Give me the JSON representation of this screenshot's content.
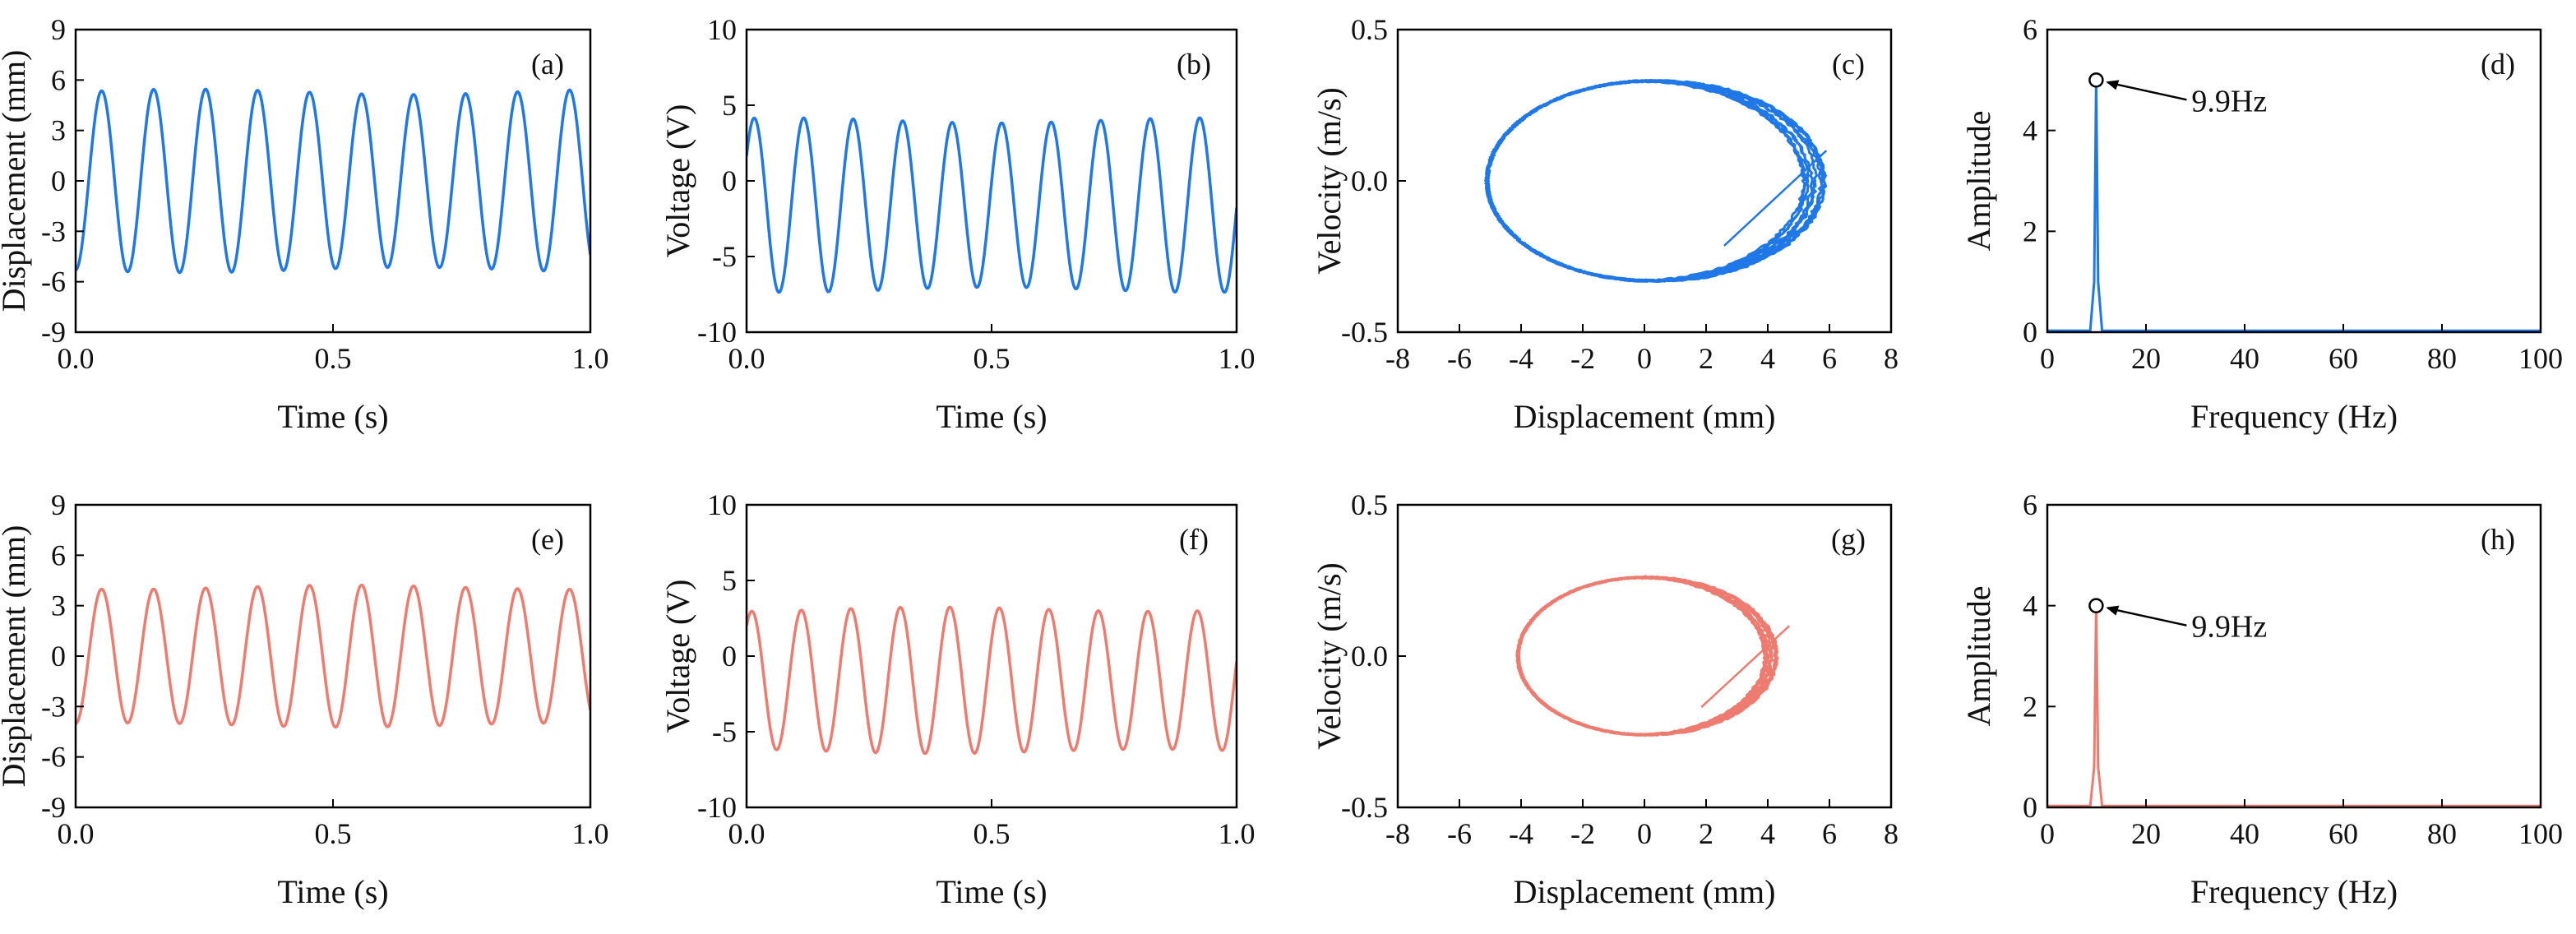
{
  "colors": {
    "blue": "#1f77e8",
    "red": "#ee7b6f",
    "axis": "#000000"
  },
  "chart_data": [
    {
      "id": "a",
      "type": "line",
      "tag": "(a)",
      "color": "blue",
      "xlabel": "Time (s)",
      "ylabel": "Displacement (mm)",
      "xlim": [
        0,
        1.0
      ],
      "ylim": [
        -9,
        9
      ],
      "xticks": [
        0.0,
        0.5,
        1.0
      ],
      "xtick_labels": [
        "0.0",
        "0.5",
        "1.0"
      ],
      "yticks": [
        -9,
        -6,
        -3,
        0,
        3,
        6,
        9
      ],
      "ytick_labels": [
        "-9",
        "-6",
        "-3",
        "0",
        "3",
        "6",
        "9"
      ],
      "series": [
        {
          "name": "displacement",
          "freq": 9.9,
          "amplitude": 5.3,
          "offset": 0,
          "phase": -1.57,
          "t0": 0,
          "t1": 1.0
        }
      ]
    },
    {
      "id": "b",
      "type": "line",
      "tag": "(b)",
      "color": "blue",
      "xlabel": "Time (s)",
      "ylabel": "Voltage (V)",
      "xlim": [
        0,
        1.0
      ],
      "ylim": [
        -10,
        10
      ],
      "xticks": [
        0.0,
        0.5,
        1.0
      ],
      "xtick_labels": [
        "0.0",
        "0.5",
        "1.0"
      ],
      "yticks": [
        -10,
        -5,
        0,
        5,
        10
      ],
      "ytick_labels": [
        "-10",
        "-5",
        "0",
        "5",
        "10"
      ],
      "series": [
        {
          "name": "voltage",
          "freq": 9.9,
          "amplitude": 5.6,
          "offset": -1.6,
          "phase": 0.6,
          "t0": 0,
          "t1": 1.0
        }
      ]
    },
    {
      "id": "c",
      "type": "scatter",
      "tag": "(c)",
      "color": "blue",
      "xlabel": "Displacement (mm)",
      "ylabel": "Velocity (m/s)",
      "xlim": [
        -8,
        8
      ],
      "ylim": [
        -0.5,
        0.5
      ],
      "xticks": [
        -8,
        -6,
        -4,
        -2,
        0,
        2,
        4,
        6,
        8
      ],
      "xtick_labels": [
        "-8",
        "-6",
        "-4",
        "-2",
        "0",
        "2",
        "4",
        "6",
        "8"
      ],
      "yticks": [
        -0.5,
        0.0,
        0.5
      ],
      "ytick_labels": [
        "-0.5",
        "0.0",
        "0.5"
      ],
      "series": [
        {
          "name": "phase-trajectory",
          "x_amplitude": 5.3,
          "x_center": 0.2,
          "v_amplitude": 0.33,
          "loops": 10,
          "spread": 0.35
        }
      ]
    },
    {
      "id": "d",
      "type": "line",
      "tag": "(d)",
      "color": "blue",
      "xlabel": "Frequency (Hz)",
      "ylabel": "Amplitude",
      "xlim": [
        0,
        100
      ],
      "ylim": [
        0,
        6
      ],
      "xticks": [
        0,
        20,
        40,
        60,
        80,
        100
      ],
      "xtick_labels": [
        "0",
        "20",
        "40",
        "60",
        "80",
        "100"
      ],
      "yticks": [
        0,
        2,
        4,
        6
      ],
      "ytick_labels": [
        "0",
        "2",
        "4",
        "6"
      ],
      "series": [
        {
          "name": "spectrum",
          "peak_freq": 9.9,
          "peak_amp": 5.0
        }
      ],
      "annotation": "9.9Hz"
    },
    {
      "id": "e",
      "type": "line",
      "tag": "(e)",
      "color": "red",
      "xlabel": "Time (s)",
      "ylabel": "Displacement (mm)",
      "xlim": [
        0,
        1.0
      ],
      "ylim": [
        -9,
        9
      ],
      "xticks": [
        0.0,
        0.5,
        1.0
      ],
      "xtick_labels": [
        "0.0",
        "0.5",
        "1.0"
      ],
      "yticks": [
        -9,
        -6,
        -3,
        0,
        3,
        6,
        9
      ],
      "ytick_labels": [
        "-9",
        "-6",
        "-3",
        "0",
        "3",
        "6",
        "9"
      ],
      "series": [
        {
          "name": "displacement",
          "freq": 9.9,
          "amplitude": 4.1,
          "offset": 0,
          "phase": -1.57,
          "t0": 0,
          "t1": 1.0
        }
      ]
    },
    {
      "id": "f",
      "type": "line",
      "tag": "(f)",
      "color": "red",
      "xlabel": "Time (s)",
      "ylabel": "Voltage (V)",
      "xlim": [
        0,
        1.0
      ],
      "ylim": [
        -10,
        10
      ],
      "xticks": [
        0.0,
        0.5,
        1.0
      ],
      "xtick_labels": [
        "0.0",
        "0.5",
        "1.0"
      ],
      "yticks": [
        -10,
        -5,
        0,
        5,
        10
      ],
      "ytick_labels": [
        "-10",
        "-5",
        "0",
        "5",
        "10"
      ],
      "series": [
        {
          "name": "voltage",
          "freq": 9.9,
          "amplitude": 4.7,
          "offset": -1.6,
          "phase": 0.9,
          "t0": 0,
          "t1": 1.0
        }
      ]
    },
    {
      "id": "g",
      "type": "scatter",
      "tag": "(g)",
      "color": "red",
      "xlabel": "Displacement (mm)",
      "ylabel": "Velocity (m/s)",
      "xlim": [
        -8,
        8
      ],
      "ylim": [
        -0.5,
        0.5
      ],
      "xticks": [
        -8,
        -6,
        -4,
        -2,
        0,
        2,
        4,
        6,
        8
      ],
      "xtick_labels": [
        "-8",
        "-6",
        "-4",
        "-2",
        "0",
        "2",
        "4",
        "6",
        "8"
      ],
      "yticks": [
        -0.5,
        0.0,
        0.5
      ],
      "ytick_labels": [
        "-0.5",
        "0.0",
        "0.5"
      ],
      "series": [
        {
          "name": "phase-trajectory",
          "x_amplitude": 4.1,
          "x_center": 0.0,
          "v_amplitude": 0.26,
          "loops": 10,
          "spread": 0.2
        }
      ]
    },
    {
      "id": "h",
      "type": "line",
      "tag": "(h)",
      "color": "red",
      "xlabel": "Frequency (Hz)",
      "ylabel": "Amplitude",
      "xlim": [
        0,
        100
      ],
      "ylim": [
        0,
        6
      ],
      "xticks": [
        0,
        20,
        40,
        60,
        80,
        100
      ],
      "xtick_labels": [
        "0",
        "20",
        "40",
        "60",
        "80",
        "100"
      ],
      "yticks": [
        0,
        2,
        4,
        6
      ],
      "ytick_labels": [
        "0",
        "2",
        "4",
        "6"
      ],
      "series": [
        {
          "name": "spectrum",
          "peak_freq": 9.9,
          "peak_amp": 4.0
        }
      ],
      "annotation": "9.9Hz"
    }
  ]
}
